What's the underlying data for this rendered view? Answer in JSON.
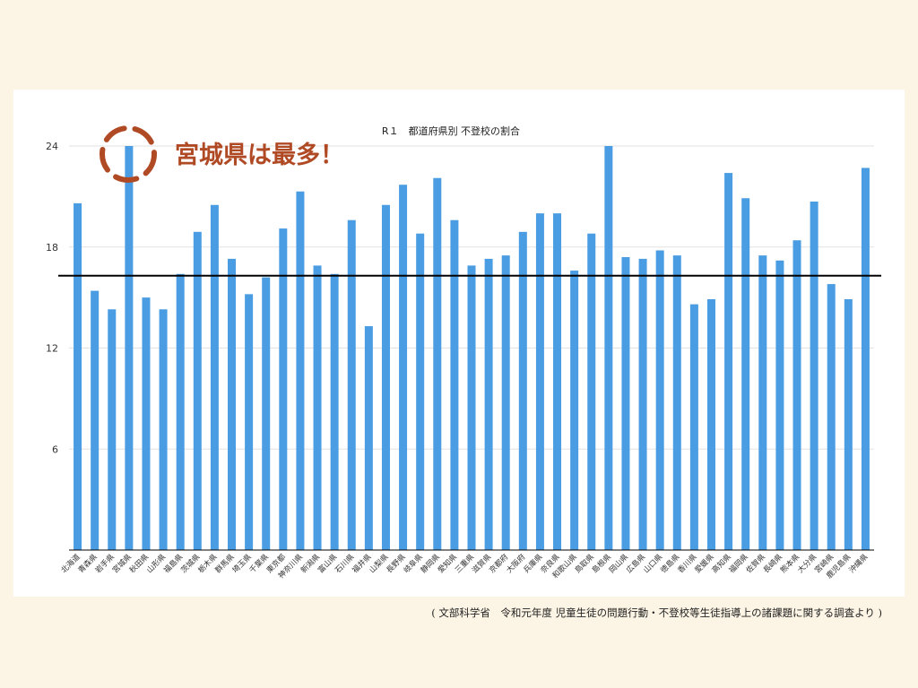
{
  "chart_data": {
    "type": "bar",
    "title": "R１　都道府県別 不登校の割合",
    "xlabel": "",
    "ylabel": "",
    "ylim": [
      0,
      24
    ],
    "yticks": [
      6,
      12,
      18,
      24
    ],
    "grid": true,
    "reference_line": 16.3,
    "bar_color": "#4a9de2",
    "categories": [
      "北海道",
      "青森県",
      "岩手県",
      "宮城県",
      "秋田県",
      "山形県",
      "福島県",
      "茨城県",
      "栃木県",
      "群馬県",
      "埼玉県",
      "千葉県",
      "東京都",
      "神奈川県",
      "新潟県",
      "富山県",
      "石川県",
      "福井県",
      "山梨県",
      "長野県",
      "岐阜県",
      "静岡県",
      "愛知県",
      "三重県",
      "滋賀県",
      "京都府",
      "大阪府",
      "兵庫県",
      "奈良県",
      "和歌山県",
      "鳥取県",
      "島根県",
      "岡山県",
      "広島県",
      "山口県",
      "徳島県",
      "香川県",
      "愛媛県",
      "高知県",
      "福岡県",
      "佐賀県",
      "長崎県",
      "熊本県",
      "大分県",
      "宮崎県",
      "鹿児島県",
      "沖縄県"
    ],
    "values": [
      20.6,
      15.4,
      14.3,
      24.0,
      15.0,
      14.3,
      16.4,
      18.9,
      20.5,
      17.3,
      15.2,
      16.2,
      19.1,
      21.3,
      16.9,
      16.4,
      19.6,
      13.3,
      20.5,
      21.7,
      18.8,
      22.1,
      19.6,
      16.9,
      17.3,
      17.5,
      18.9,
      20.0,
      20.0,
      16.6,
      18.8,
      24.0,
      17.4,
      17.3,
      17.8,
      17.5,
      14.6,
      14.9,
      22.4,
      20.9,
      17.5,
      17.2,
      18.4,
      20.7,
      15.8,
      14.9,
      22.7
    ]
  },
  "callout": {
    "text": "宮城県は最多！",
    "color": "#b04a24"
  },
  "source_note": "( 文部科学省　令和元年度 児童生徒の問題行動・不登校等生徒指導上の諸課題に関する調査より )"
}
